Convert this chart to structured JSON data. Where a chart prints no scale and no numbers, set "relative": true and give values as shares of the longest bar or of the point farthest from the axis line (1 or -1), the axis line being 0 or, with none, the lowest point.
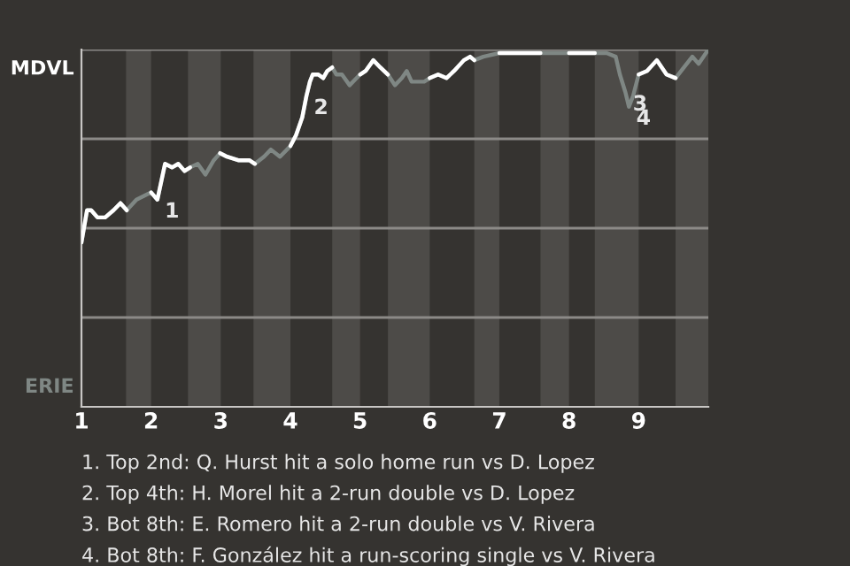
{
  "chart_data": {
    "type": "line",
    "relative": true,
    "xlim": [
      1,
      10
    ],
    "xticks": [
      1,
      2,
      3,
      4,
      5,
      6,
      7,
      8,
      9
    ],
    "tick_labels": "x",
    "grid": false,
    "legend": false,
    "series": [
      {
        "color": "#7f8784",
        "x": [
          1,
          1.08,
          1.14,
          1.23,
          1.34,
          1.46,
          1.56,
          1.65,
          1.79,
          2,
          2.09,
          2.2,
          2.3,
          2.39,
          2.48,
          2.56,
          2.67,
          2.78,
          2.9,
          2.99,
          3.09,
          3.25,
          3.41,
          3.49,
          3.62,
          3.72,
          3.85,
          4,
          4.08,
          4.17,
          4.23,
          4.28,
          4.32,
          4.4,
          4.47,
          4.53,
          4.6,
          4.66,
          4.74,
          4.85,
          4.95,
          5,
          5.08,
          5.19,
          5.29,
          5.4,
          5.5,
          5.6,
          5.67,
          5.74,
          5.92,
          6,
          6.12,
          6.24,
          6.35,
          6.49,
          6.58,
          6.64,
          6.77,
          7,
          7.59,
          7.83,
          8,
          8.37,
          8.54,
          8.67,
          8.73,
          8.81,
          8.86,
          8.92,
          9,
          9.12,
          9.26,
          9.4,
          9.53,
          9.65,
          9.77,
          9.86,
          10
        ],
        "values": [
          0.46,
          0.55,
          0.55,
          0.53,
          0.53,
          0.55,
          0.57,
          0.55,
          0.58,
          0.6,
          0.58,
          0.68,
          0.67,
          0.68,
          0.66,
          0.67,
          0.68,
          0.65,
          0.69,
          0.71,
          0.7,
          0.69,
          0.69,
          0.68,
          0.7,
          0.72,
          0.7,
          0.73,
          0.76,
          0.81,
          0.87,
          0.91,
          0.93,
          0.93,
          0.92,
          0.94,
          0.95,
          0.93,
          0.93,
          0.9,
          0.92,
          0.93,
          0.94,
          0.97,
          0.95,
          0.93,
          0.9,
          0.92,
          0.94,
          0.91,
          0.91,
          0.92,
          0.93,
          0.92,
          0.94,
          0.97,
          0.98,
          0.97,
          0.98,
          0.99,
          0.99,
          0.99,
          0.99,
          0.99,
          0.99,
          0.98,
          0.93,
          0.88,
          0.84,
          0.87,
          0.93,
          0.94,
          0.97,
          0.93,
          0.92,
          0.95,
          0.98,
          0.96,
          1.0
        ],
        "colors": [
          "#ffffff",
          "#ffffff",
          "#ffffff",
          "#ffffff",
          "#ffffff",
          "#ffffff",
          "#ffffff",
          "#7f8784",
          "#7f8784",
          "#ffffff",
          "#ffffff",
          "#ffffff",
          "#ffffff",
          "#ffffff",
          "#ffffff",
          "#7f8784",
          "#7f8784",
          "#7f8784",
          "#7f8784",
          "#ffffff",
          "#ffffff",
          "#ffffff",
          "#ffffff",
          "#7f8784",
          "#7f8784",
          "#7f8784",
          "#7f8784",
          "#ffffff",
          "#ffffff",
          "#ffffff",
          "#ffffff",
          "#ffffff",
          "#ffffff",
          "#ffffff",
          "#ffffff",
          "#ffffff",
          "#7f8784",
          "#7f8784",
          "#7f8784",
          "#7f8784",
          "#7f8784",
          "#ffffff",
          "#ffffff",
          "#ffffff",
          "#ffffff",
          "#7f8784",
          "#7f8784",
          "#7f8784",
          "#7f8784",
          "#7f8784",
          "#7f8784",
          "#ffffff",
          "#ffffff",
          "#ffffff",
          "#ffffff",
          "#ffffff",
          "#ffffff",
          "#7f8784",
          "#7f8784",
          "#ffffff",
          "#7f8784",
          "#7f8784",
          "#ffffff",
          "#7f8784",
          "#7f8784",
          "#7f8784",
          "#7f8784",
          "#7f8784",
          "#7f8784",
          "#7f8784",
          "#ffffff",
          "#ffffff",
          "#ffffff",
          "#ffffff",
          "#7f8784",
          "#7f8784",
          "#7f8784",
          "#7f8784",
          "#7f8784"
        ]
      }
    ],
    "bands": [
      {
        "axis": "x",
        "from": 1.64,
        "to": 2,
        "color": "#4d4b48"
      },
      {
        "axis": "x",
        "from": 2.53,
        "to": 3,
        "color": "#4d4b48"
      },
      {
        "axis": "x",
        "from": 3.47,
        "to": 4,
        "color": "#4d4b48"
      },
      {
        "axis": "x",
        "from": 4.6,
        "to": 5,
        "color": "#4d4b48"
      },
      {
        "axis": "x",
        "from": 5.4,
        "to": 6,
        "color": "#4d4b48"
      },
      {
        "axis": "x",
        "from": 6.64,
        "to": 7,
        "color": "#4d4b48"
      },
      {
        "axis": "x",
        "from": 7.59,
        "to": 8,
        "color": "#4d4b48"
      },
      {
        "axis": "x",
        "from": 8.37,
        "to": 9,
        "color": "#4d4b48"
      },
      {
        "axis": "x",
        "from": 9.53,
        "to": 10,
        "color": "#4d4b48"
      }
    ],
    "ref_lines": [
      {
        "axis": "y",
        "value": 0.25,
        "color": "#8c8a87"
      },
      {
        "axis": "y",
        "value": 0.5,
        "color": "#8c8a87"
      },
      {
        "axis": "y",
        "value": 0.75,
        "color": "#8c8a87"
      },
      {
        "axis": "y",
        "value": 1,
        "color": "#8c8a87"
      }
    ],
    "annotations": [
      "MDVL",
      "ERIE",
      {
        "text": "1",
        "x": 2.09,
        "y": 0.58
      },
      {
        "text": "2",
        "x": 4.23,
        "y": 0.87
      },
      {
        "text": "3",
        "x": 8.81,
        "y": 0.88
      },
      {
        "text": "4",
        "x": 8.86,
        "y": 0.84
      },
      "1. Top 2nd: Q. Hurst hit a solo home run vs D. Lopez",
      "2. Top 4th: H. Morel hit a 2-run double vs D. Lopez",
      "3. Bot 8th: E. Romero hit a 2-run double vs V. Rivera",
      "4. Bot 8th: F. González hit a run-scoring single vs V. Rivera"
    ]
  }
}
